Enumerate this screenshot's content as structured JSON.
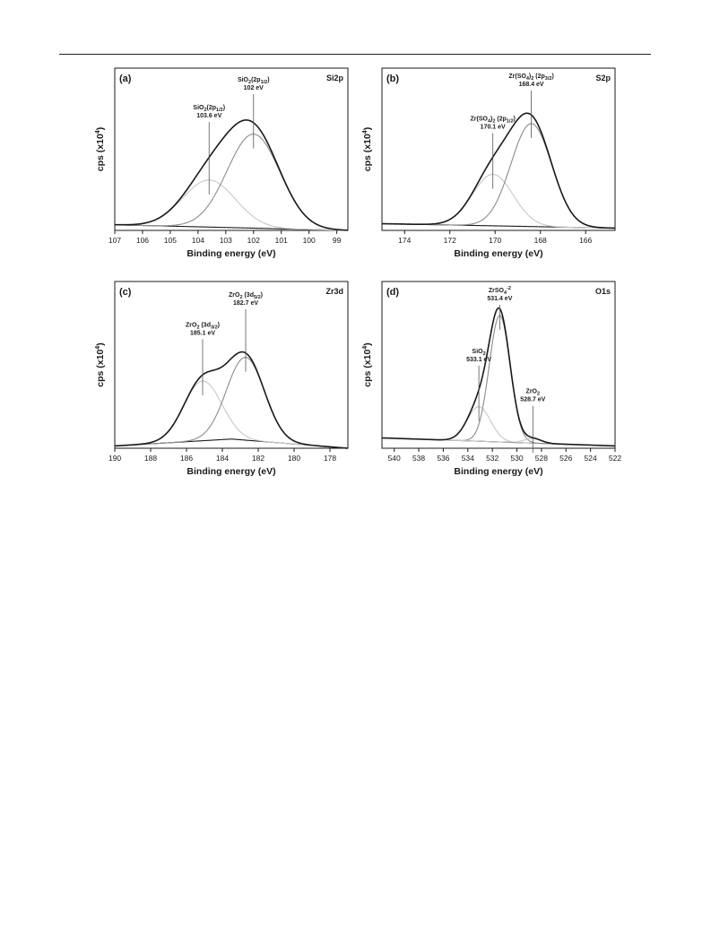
{
  "chart_data": [
    {
      "type": "line",
      "panel_label": "(a)",
      "element": "Si2p",
      "xlabel": "Binding energy (eV)",
      "ylabel": "cps (x10",
      "ylabel_sup": "4",
      "ylabel_close": ")",
      "xlim": [
        107,
        98.6
      ],
      "xticks": [
        "107",
        "106",
        "105",
        "104",
        "103",
        "102",
        "101",
        "100",
        "99"
      ],
      "baseline": [
        [
          107,
          0.05
        ],
        [
          98.6,
          0.0
        ]
      ],
      "peaks": [
        {
          "center": 103.6,
          "height": 0.42,
          "sigma": 0.95
        },
        {
          "center": 102.0,
          "height": 0.84,
          "sigma": 0.95
        }
      ],
      "annotations": [
        {
          "text": "SiO",
          "sub": "2",
          "tail": "(2p",
          "tail_sub": "1/2",
          "close": ")",
          "value": "103.6 eV",
          "x": 103.6,
          "y": 1.0
        },
        {
          "text": "SiO",
          "sub": "2",
          "tail": "(2p",
          "tail_sub": "1/2",
          "close": ")",
          "value": "102 eV",
          "x": 102.0,
          "y": 1.25
        }
      ]
    },
    {
      "type": "line",
      "panel_label": "(b)",
      "element": "S2p",
      "xlabel": "Binding energy (eV)",
      "ylabel": "cps (x10",
      "ylabel_sup": "4",
      "ylabel_close": ")",
      "xlim": [
        175,
        164.7
      ],
      "xticks": [
        "174",
        "172",
        "170",
        "168",
        "166"
      ],
      "baseline": [
        [
          175,
          0.06
        ],
        [
          164.7,
          0.02
        ]
      ],
      "peaks": [
        {
          "center": 170.1,
          "height": 0.46,
          "sigma": 0.9
        },
        {
          "center": 168.4,
          "height": 0.92,
          "sigma": 0.9
        }
      ],
      "annotations": [
        {
          "text": "Zr(SO",
          "sub": "4",
          "tail": ")",
          "tail_sub": "2",
          "extra": " (2p",
          "extra_sub": "1/2",
          "close": ")",
          "value": "170.1 eV",
          "x": 170.1,
          "y": 0.9
        },
        {
          "text": "Zr(SO",
          "sub": "4",
          "tail": ")",
          "tail_sub": "2",
          "extra": " (2p",
          "extra_sub": "3/2",
          "close": ")",
          "value": "168.4 eV",
          "x": 168.4,
          "y": 1.28
        }
      ]
    },
    {
      "type": "line",
      "panel_label": "(c)",
      "element": "Zr3d",
      "xlabel": "Binding energy (eV)",
      "ylabel": "cps (x10",
      "ylabel_sup": "4",
      "ylabel_close": ")",
      "xlim": [
        190,
        177
      ],
      "xticks": [
        "190",
        "188",
        "186",
        "184",
        "182",
        "180",
        "178"
      ],
      "baseline": [
        [
          190,
          0.02
        ],
        [
          183.5,
          0.08
        ],
        [
          177,
          0.0
        ]
      ],
      "peaks": [
        {
          "center": 185.1,
          "height": 0.52,
          "sigma": 1.05
        },
        {
          "center": 182.7,
          "height": 0.72,
          "sigma": 1.05
        }
      ],
      "annotations": [
        {
          "text": "ZrO",
          "sub": "2",
          "tail": " (3d",
          "tail_sub": "3/2",
          "close": ")",
          "value": "185.1 eV",
          "x": 185.1,
          "y": 0.98
        },
        {
          "text": "ZrO",
          "sub": "2",
          "tail": " (3d",
          "tail_sub": "5/2",
          "close": ")",
          "value": "182.7 eV",
          "x": 182.7,
          "y": 1.24
        }
      ]
    },
    {
      "type": "line",
      "panel_label": "(d)",
      "element": "O1s",
      "xlabel": "Binding energy (eV)",
      "ylabel": "cps (x10",
      "ylabel_sup": "4",
      "ylabel_close": ")",
      "xlim": [
        541,
        522
      ],
      "xticks": [
        "540",
        "538",
        "536",
        "534",
        "532",
        "530",
        "528",
        "526",
        "524",
        "522"
      ],
      "baseline": [
        [
          541,
          0.09
        ],
        [
          522,
          0.02
        ]
      ],
      "peaks": [
        {
          "center": 533.1,
          "height": 0.3,
          "sigma": 0.95
        },
        {
          "center": 531.4,
          "height": 1.1,
          "sigma": 0.85
        },
        {
          "center": 528.7,
          "height": 0.04,
          "sigma": 0.7
        }
      ],
      "annotations": [
        {
          "text": "SiO",
          "sub": "2",
          "tail": "",
          "tail_sub": "",
          "close": "",
          "value": "533.1 eV",
          "x": 533.1,
          "y": 0.75
        },
        {
          "text": "ZrSO",
          "sub": "4",
          "sup": "-2",
          "tail": "",
          "tail_sub": "",
          "close": "",
          "value": "531.4 eV",
          "x": 531.4,
          "y": 1.28
        },
        {
          "text": "ZrO",
          "sub": "2",
          "tail": "",
          "tail_sub": "",
          "close": "",
          "value": "528.7 eV",
          "x": 528.7,
          "y": 0.4
        }
      ]
    }
  ],
  "colors": {
    "envelope": "#1a1a1a",
    "component_main": "#8c8c8c",
    "component_minor": "#c8c8c8",
    "baseline": "#1a1a1a",
    "frame": "#1a1a1a"
  }
}
